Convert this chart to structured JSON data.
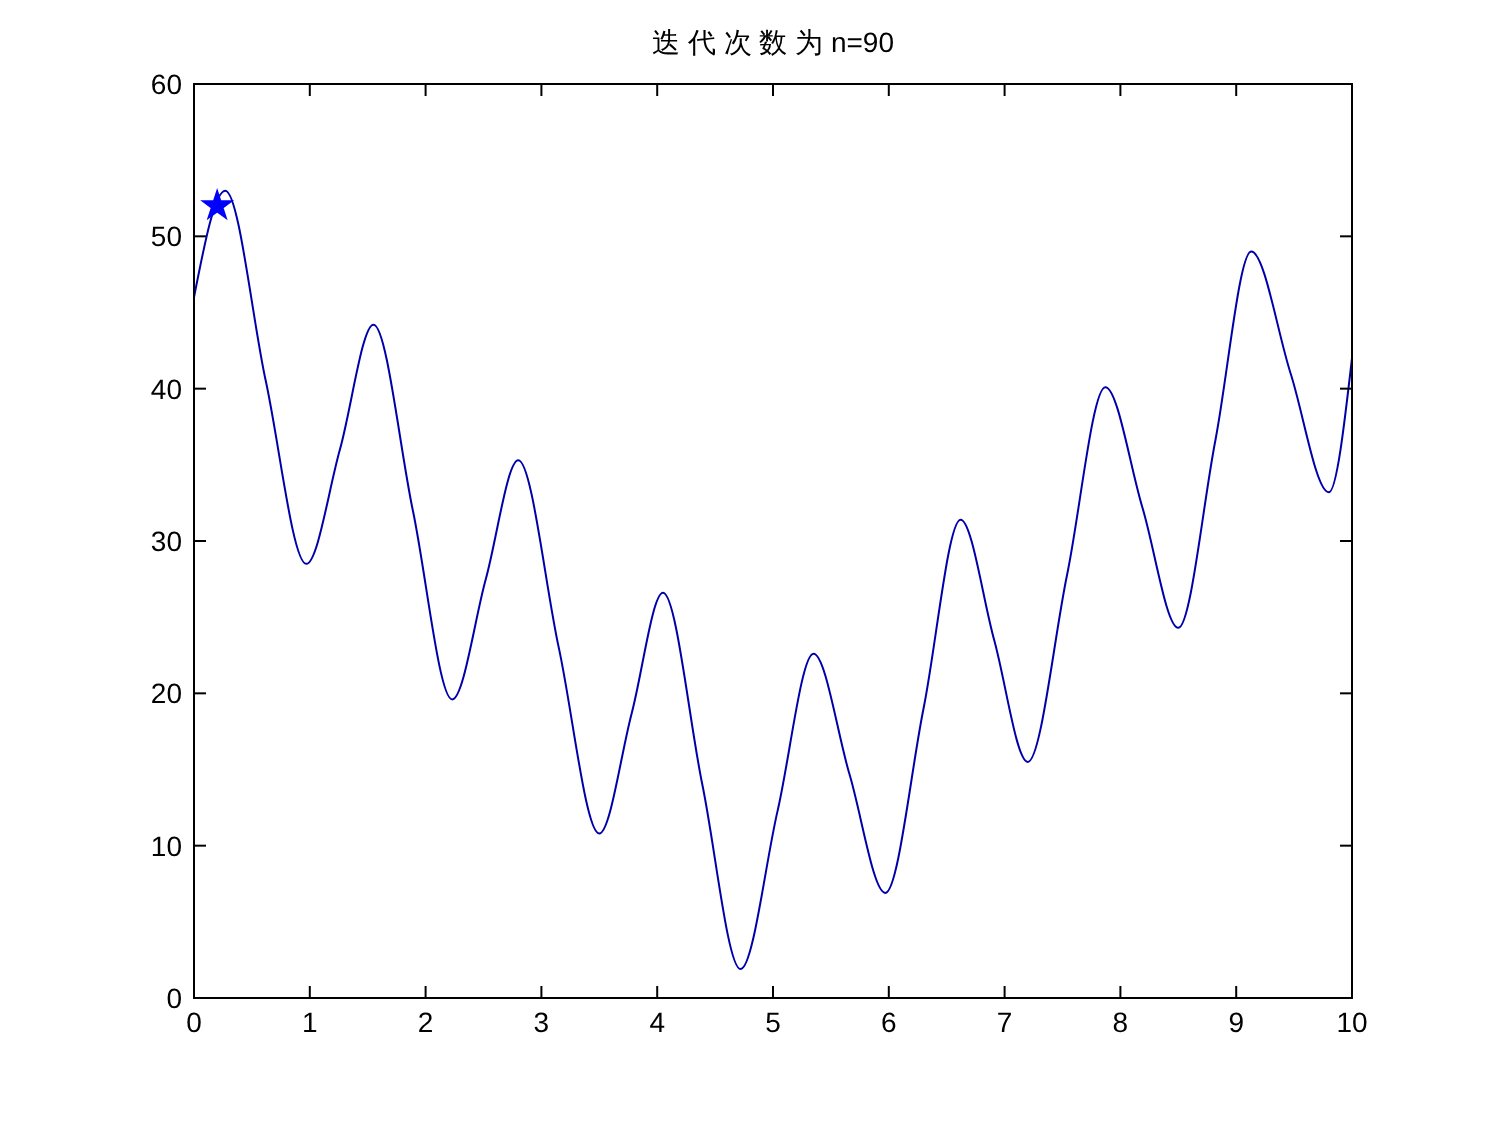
{
  "chart_data": {
    "type": "line",
    "title": "迭 代 次 数 为 n=90",
    "x": [
      0,
      0.27,
      0.62,
      0.97,
      1.26,
      1.55,
      1.89,
      2.23,
      2.52,
      2.8,
      3.15,
      3.5,
      3.78,
      4.05,
      4.39,
      4.72,
      5.04,
      5.35,
      5.66,
      5.97,
      6.3,
      6.62,
      6.91,
      7.2,
      7.54,
      7.87,
      8.19,
      8.5,
      8.82,
      9.13,
      9.47,
      9.8,
      10
    ],
    "series": [
      {
        "color": "#0000aa",
        "values": [
          46,
          53,
          40.5,
          28.5,
          36,
          44.2,
          32,
          19.6,
          27.5,
          35.3,
          23,
          10.8,
          18.7,
          26.6,
          14,
          1.9,
          12.3,
          22.6,
          14.7,
          6.9,
          19,
          31.4,
          23.5,
          15.5,
          27.8,
          40.1,
          32.2,
          24.3,
          36.6,
          49,
          41,
          33.2,
          42
        ]
      },
      {
        "type": "scatter",
        "color": "#0000ff",
        "marker": "star",
        "x": [
          0.2
        ],
        "values": [
          52
        ]
      }
    ],
    "xlim": [
      0,
      10
    ],
    "ylim": [
      0,
      60
    ],
    "xticks": [
      0,
      1,
      2,
      3,
      4,
      5,
      6,
      7,
      8,
      9,
      10
    ],
    "yticks": [
      0,
      10,
      20,
      30,
      40,
      50,
      60
    ]
  }
}
